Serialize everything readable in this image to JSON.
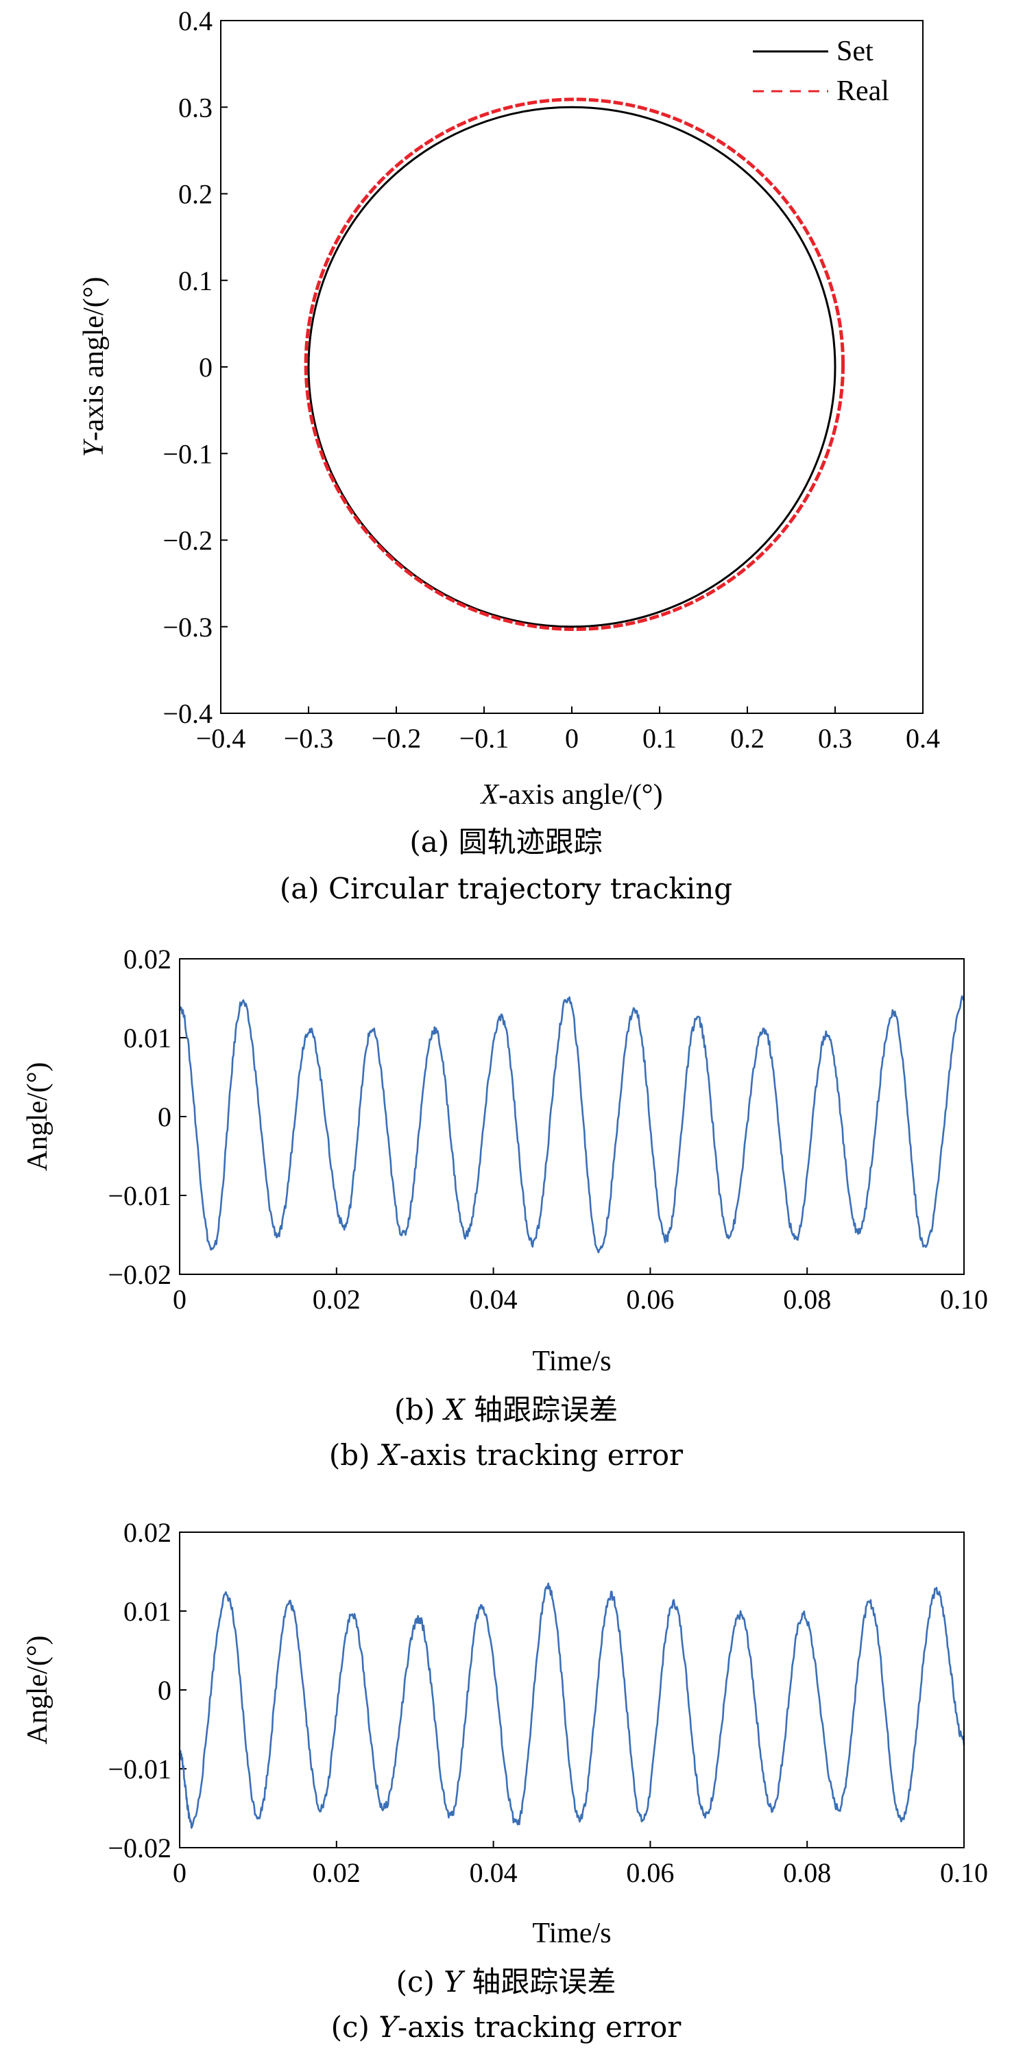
{
  "chart_data": [
    {
      "type": "line",
      "panel": "a",
      "xlabel_italic": "X",
      "xlabel_rest": "-axis angle/(°)",
      "ylabel_italic": "Y",
      "ylabel_rest": "-axis angle/(°)",
      "xlim": [
        -0.4,
        0.4
      ],
      "ylim": [
        -0.4,
        0.4
      ],
      "xticks": [
        "−0.4",
        "−0.3",
        "−0.2",
        "−0.1",
        "0",
        "0.1",
        "0.2",
        "0.3",
        "0.4"
      ],
      "yticks": [
        "0.4",
        "0.3",
        "0.2",
        "0.1",
        "0",
        "−0.1",
        "−0.2",
        "−0.3",
        "−0.4"
      ],
      "legend": {
        "placement": "top-right",
        "entries": [
          "Set",
          "Real"
        ]
      },
      "series": [
        {
          "name": "Set",
          "color": "#000000",
          "style": "solid",
          "shape": "circle",
          "center": [
            0,
            0
          ],
          "radius": 0.3
        },
        {
          "name": "Real",
          "color": "#e8232a",
          "style": "dashed",
          "shape": "circle",
          "center": [
            0.003,
            0.003
          ],
          "radius": 0.306
        }
      ],
      "caption_cn": "(a) 圆轨迹跟踪",
      "caption_en": "(a) Circular trajectory tracking"
    },
    {
      "type": "line",
      "panel": "b",
      "xlabel": "Time/s",
      "ylabel": "Angle/(°)",
      "xlim": [
        0,
        0.1
      ],
      "ylim": [
        -0.02,
        0.02
      ],
      "xticks": [
        "0",
        "0.02",
        "0.04",
        "0.06",
        "0.08",
        "0.10"
      ],
      "yticks": [
        "0.02",
        "0.01",
        "0",
        "−0.01",
        "−0.02"
      ],
      "series": [
        {
          "color": "#3b6fb6",
          "x": [
            0,
            0.0042,
            0.008,
            0.0125,
            0.0165,
            0.021,
            0.0245,
            0.0285,
            0.0325,
            0.0365,
            0.041,
            0.045,
            0.0495,
            0.0535,
            0.058,
            0.062,
            0.066,
            0.07,
            0.0745,
            0.0785,
            0.0825,
            0.0865,
            0.091,
            0.095,
            0.1
          ],
          "y": [
            0.014,
            -0.017,
            0.0145,
            -0.015,
            0.011,
            -0.014,
            0.011,
            -0.015,
            0.011,
            -0.015,
            0.0125,
            -0.016,
            0.015,
            -0.017,
            0.0135,
            -0.0155,
            0.0125,
            -0.015,
            0.011,
            -0.0155,
            0.0105,
            -0.0145,
            0.013,
            -0.0165,
            0.015
          ]
        }
      ],
      "caption_cn_pre": "(b) ",
      "caption_cn_italic": "X",
      "caption_cn_post": " 轴跟踪误差",
      "caption_en_pre": "(b) ",
      "caption_en_italic": "X",
      "caption_en_post": "-axis tracking error"
    },
    {
      "type": "line",
      "panel": "c",
      "xlabel": "Time/s",
      "ylabel": "Angle/(°)",
      "xlim": [
        0,
        0.1
      ],
      "ylim": [
        -0.02,
        0.02
      ],
      "xticks": [
        "0",
        "0.02",
        "0.04",
        "0.06",
        "0.08",
        "0.10"
      ],
      "yticks": [
        "0.02",
        "0.01",
        "0",
        "−0.01",
        "−0.02"
      ],
      "series": [
        {
          "color": "#3b6fb6",
          "x": [
            0,
            0.0015,
            0.006,
            0.01,
            0.014,
            0.018,
            0.022,
            0.026,
            0.0305,
            0.0345,
            0.0385,
            0.043,
            0.047,
            0.051,
            0.055,
            0.059,
            0.063,
            0.067,
            0.0715,
            0.0755,
            0.0795,
            0.084,
            0.088,
            0.092,
            0.0965,
            0.1
          ],
          "y": [
            -0.008,
            -0.017,
            0.012,
            -0.016,
            0.011,
            -0.015,
            0.0095,
            -0.015,
            0.009,
            -0.016,
            0.0105,
            -0.017,
            0.013,
            -0.0165,
            0.012,
            -0.0165,
            0.011,
            -0.016,
            0.0095,
            -0.015,
            0.0095,
            -0.015,
            0.011,
            -0.0165,
            0.0125,
            -0.0065
          ]
        }
      ],
      "caption_cn_pre": "(c) ",
      "caption_cn_italic": "Y",
      "caption_cn_post": " 轴跟踪误差",
      "caption_en_pre": "(c) ",
      "caption_en_italic": "Y",
      "caption_en_post": "-axis tracking error"
    }
  ]
}
